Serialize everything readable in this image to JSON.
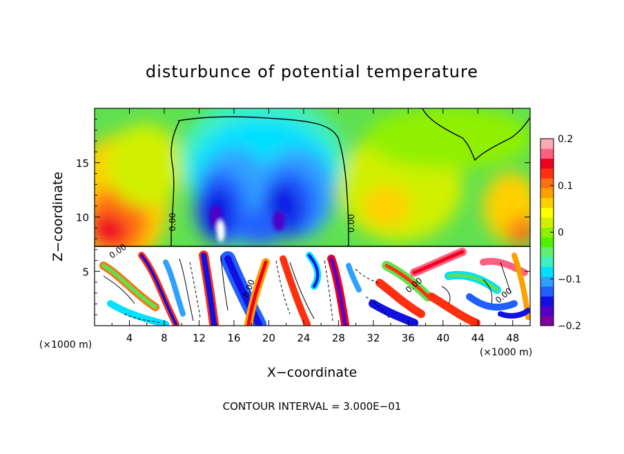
{
  "chart_data": {
    "type": "heatmap",
    "title": "disturbunce of potential temperature",
    "xlabel": "X−coordinate",
    "ylabel": "Z−coordinate",
    "x_unit": "(×1000 m)",
    "z_unit": "(×1000 m)",
    "footer": "CONTOUR INTERVAL = 3.000E−01",
    "xlim": [
      0,
      50
    ],
    "ylim": [
      0,
      20
    ],
    "x_ticks": [
      "4",
      "8",
      "12",
      "16",
      "20",
      "24",
      "28",
      "32",
      "36",
      "40",
      "44",
      "48"
    ],
    "y_ticks": [
      "5",
      "10",
      "15"
    ],
    "colorbar": {
      "range": [
        -0.2,
        0.2
      ],
      "tick_labels": [
        "0.2",
        "0.1",
        "0",
        "−0.1",
        "−0.2"
      ],
      "colors": [
        "#8000a0",
        "#5000c8",
        "#1010e0",
        "#2060ff",
        "#30a0ff",
        "#00e0ff",
        "#40f0c0",
        "#60f070",
        "#50f000",
        "#90f000",
        "#d0f000",
        "#ffff00",
        "#ffd000",
        "#ffa000",
        "#ff7010",
        "#ff3010",
        "#f00020",
        "#ff6080",
        "#ffa8b8"
      ]
    },
    "contour_labels": [
      "0.00",
      "0.00",
      "0.00",
      "0.00",
      "0.00",
      "0.00"
    ],
    "grid": false,
    "legend_position": "right"
  }
}
